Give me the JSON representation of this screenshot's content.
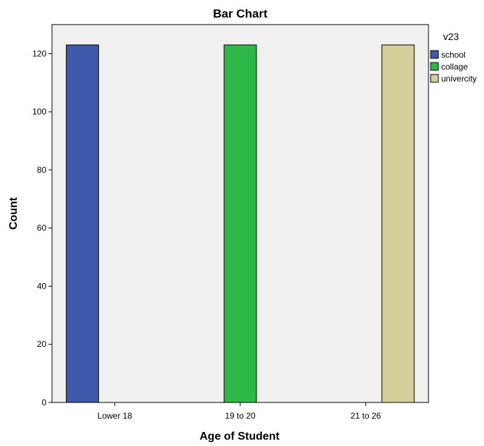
{
  "chart_data": {
    "type": "bar",
    "title": "Bar Chart",
    "xlabel": "Age of Student",
    "ylabel": "Count",
    "categories": [
      "Lower 18",
      "19 to 20",
      "21 to 26"
    ],
    "ylim": [
      0,
      130
    ],
    "yticks": [
      0,
      20,
      40,
      60,
      80,
      100,
      120
    ],
    "grid": false,
    "legend": {
      "title": "v23",
      "placement": "top-right outside plot"
    },
    "series": [
      {
        "name": "school",
        "color": "#3e58ac",
        "values": [
          123,
          0,
          0
        ]
      },
      {
        "name": "collage",
        "color": "#2eb848",
        "values": [
          0,
          123,
          0
        ]
      },
      {
        "name": "univercity",
        "color": "#d4cf98",
        "values": [
          0,
          0,
          123
        ]
      }
    ],
    "plot_background": "#f0f0f0"
  }
}
